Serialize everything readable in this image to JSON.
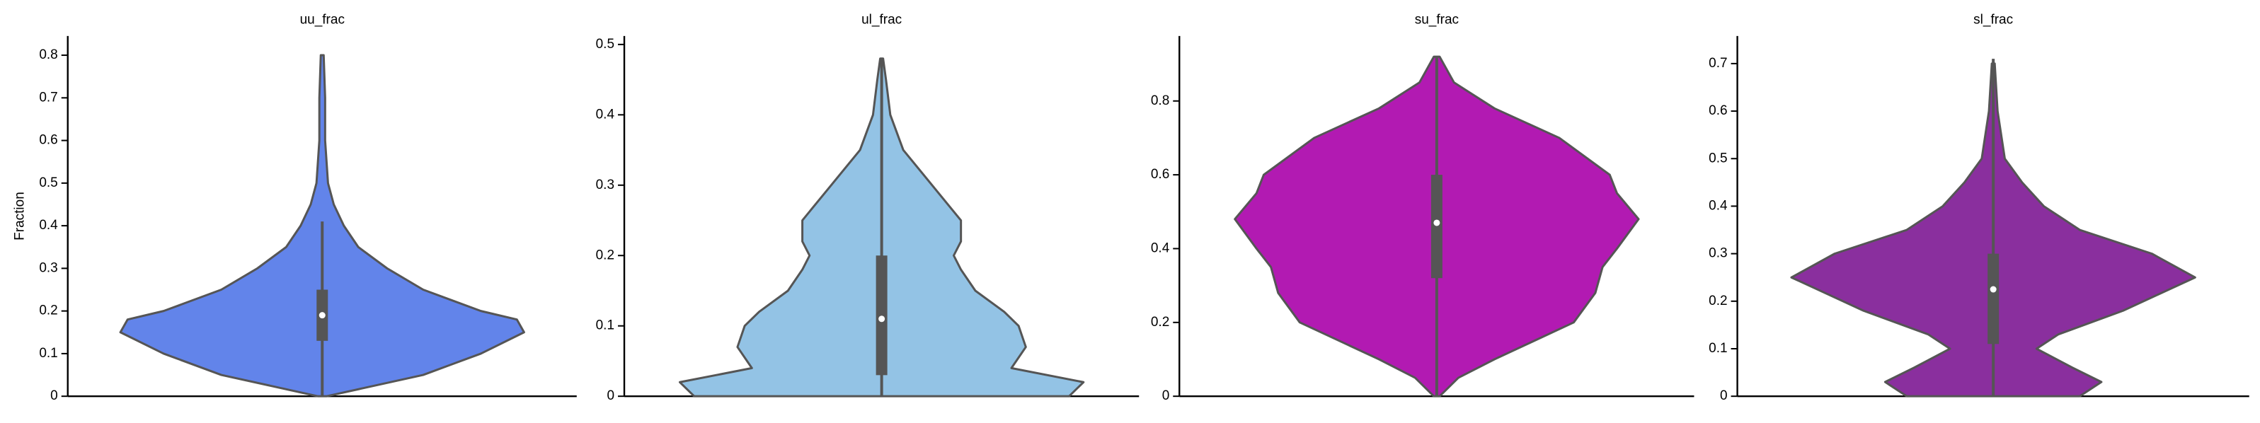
{
  "chart_data": [
    {
      "type": "violin",
      "title": "uu_frac",
      "ylabel": "Fraction",
      "color": "#6284ea",
      "ylim": [
        0,
        0.845
      ],
      "yticks": [
        0,
        0.1,
        0.2,
        0.3,
        0.4,
        0.5,
        0.6,
        0.7,
        0.8
      ],
      "density_y": [
        0,
        0.05,
        0.1,
        0.15,
        0.18,
        0.2,
        0.25,
        0.3,
        0.35,
        0.4,
        0.45,
        0.5,
        0.6,
        0.7,
        0.8
      ],
      "density": [
        3,
        70,
        110,
        140,
        135,
        110,
        70,
        45,
        25,
        15,
        8,
        4,
        2,
        2,
        1
      ],
      "quartiles": [
        0.13,
        0.19,
        0.25
      ],
      "whiskers": [
        0,
        0.41
      ]
    },
    {
      "type": "violin",
      "title": "ul_frac",
      "color": "#93c3e5",
      "ylim": [
        0,
        0.512
      ],
      "yticks": [
        0,
        0.1,
        0.2,
        0.3,
        0.4,
        0.5
      ],
      "density_y": [
        0,
        0.02,
        0.04,
        0.07,
        0.1,
        0.12,
        0.15,
        0.18,
        0.2,
        0.22,
        0.25,
        0.3,
        0.35,
        0.4,
        0.45,
        0.48
      ],
      "density": [
        130,
        140,
        90,
        100,
        95,
        85,
        65,
        55,
        50,
        55,
        55,
        35,
        15,
        6,
        3,
        1
      ],
      "quartiles": [
        0.03,
        0.11,
        0.2
      ],
      "whiskers": [
        0,
        0.48
      ]
    },
    {
      "type": "violin",
      "title": "su_frac",
      "color": "#b21ab2",
      "ylim": [
        0,
        0.976
      ],
      "yticks": [
        0,
        0.2,
        0.4,
        0.6,
        0.8
      ],
      "density_y": [
        0,
        0.05,
        0.1,
        0.2,
        0.28,
        0.35,
        0.4,
        0.48,
        0.55,
        0.6,
        0.7,
        0.78,
        0.85,
        0.92
      ],
      "density": [
        2,
        15,
        40,
        95,
        110,
        115,
        125,
        140,
        125,
        120,
        85,
        40,
        12,
        2
      ],
      "quartiles": [
        0.32,
        0.47,
        0.6
      ],
      "whiskers": [
        0,
        0.92
      ]
    },
    {
      "type": "violin",
      "title": "sl_frac",
      "color": "#8a2f9e",
      "ylim": [
        0,
        0.758
      ],
      "yticks": [
        0,
        0.1,
        0.2,
        0.3,
        0.4,
        0.5,
        0.6,
        0.7
      ],
      "density_y": [
        0,
        0.03,
        0.06,
        0.1,
        0.13,
        0.18,
        0.25,
        0.3,
        0.35,
        0.4,
        0.45,
        0.5,
        0.6,
        0.7
      ],
      "density": [
        60,
        75,
        55,
        30,
        45,
        90,
        140,
        110,
        60,
        35,
        20,
        8,
        3,
        1
      ],
      "quartiles": [
        0.11,
        0.225,
        0.3
      ],
      "whiskers": [
        0,
        0.71
      ]
    }
  ]
}
